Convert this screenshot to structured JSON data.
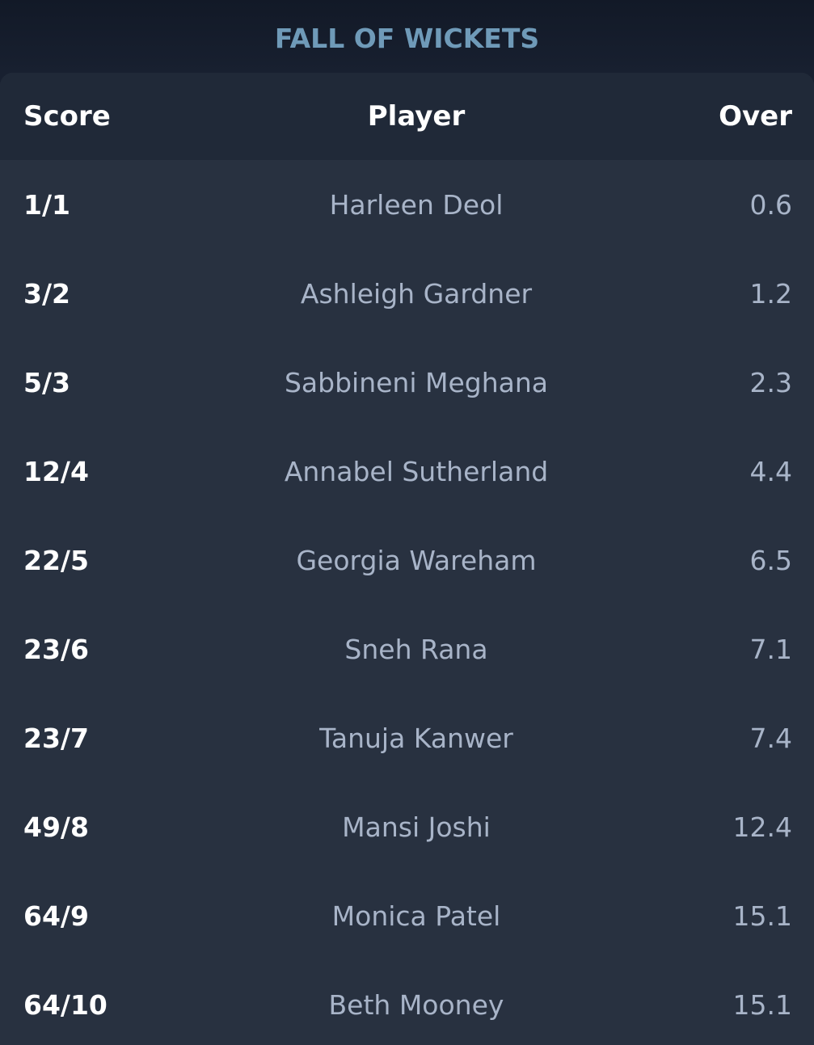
{
  "title": "FALL OF WICKETS",
  "table": {
    "headers": {
      "score": "Score",
      "player": "Player",
      "over": "Over"
    },
    "rows": [
      {
        "score": "1/1",
        "player": "Harleen Deol",
        "over": "0.6"
      },
      {
        "score": "3/2",
        "player": "Ashleigh Gardner",
        "over": "1.2"
      },
      {
        "score": "5/3",
        "player": "Sabbineni Meghana",
        "over": "2.3"
      },
      {
        "score": "12/4",
        "player": "Annabel Sutherland",
        "over": "4.4"
      },
      {
        "score": "22/5",
        "player": "Georgia Wareham",
        "over": "6.5"
      },
      {
        "score": "23/6",
        "player": "Sneh Rana",
        "over": "7.1"
      },
      {
        "score": "23/7",
        "player": "Tanuja Kanwer",
        "over": "7.4"
      },
      {
        "score": "49/8",
        "player": "Mansi Joshi",
        "over": "12.4"
      },
      {
        "score": "64/9",
        "player": "Monica Patel",
        "over": "15.1"
      },
      {
        "score": "64/10",
        "player": "Beth Mooney",
        "over": "15.1"
      }
    ]
  }
}
